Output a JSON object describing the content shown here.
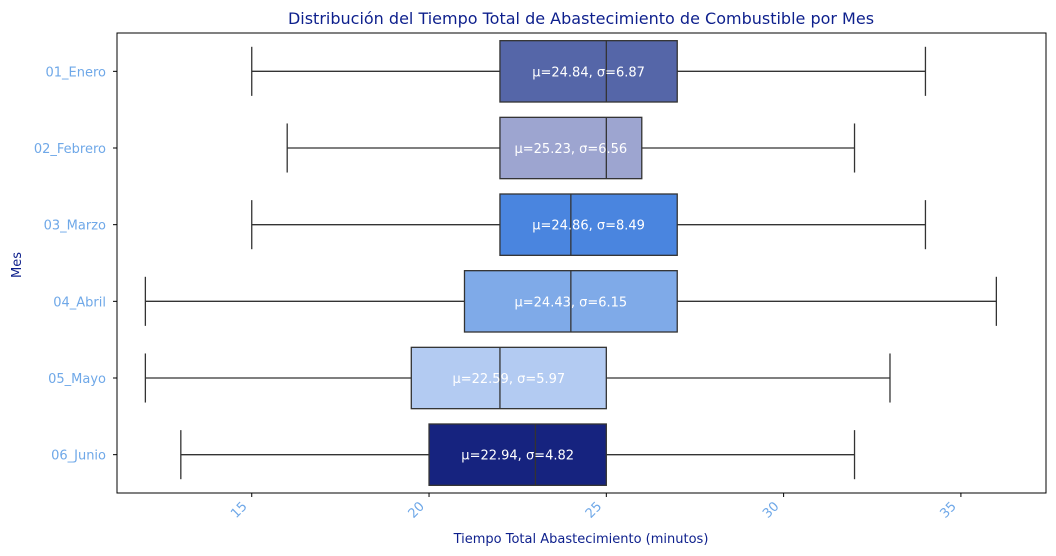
{
  "chart_data": {
    "type": "box",
    "orientation": "horizontal",
    "title": "Distribución del Tiempo Total de Abastecimiento de Combustible por Mes",
    "xlabel": "Tiempo Total Abastecimiento (minutos)",
    "ylabel": "Mes",
    "xlim": [
      11.2,
      37.4
    ],
    "xticks": [
      15,
      20,
      25,
      30,
      35
    ],
    "grid": false,
    "categories": [
      "01_Enero",
      "02_Febrero",
      "03_Marzo",
      "04_Abril",
      "05_Mayo",
      "06_Junio"
    ],
    "boxes": [
      {
        "category": "01_Enero",
        "whisker_low": 15,
        "q1": 22,
        "median": 25,
        "q3": 27,
        "whisker_high": 34,
        "label": "μ=24.84, σ=6.87",
        "color": "#5566a8"
      },
      {
        "category": "02_Febrero",
        "whisker_low": 16,
        "q1": 22,
        "median": 25,
        "q3": 26,
        "whisker_high": 32,
        "label": "μ=25.23, σ=6.56",
        "color": "#9da5d0"
      },
      {
        "category": "03_Marzo",
        "whisker_low": 15,
        "q1": 22,
        "median": 24,
        "q3": 27,
        "whisker_high": 34,
        "label": "μ=24.86, σ=8.49",
        "color": "#4a85df"
      },
      {
        "category": "04_Abril",
        "whisker_low": 12,
        "q1": 21,
        "median": 24,
        "q3": 27,
        "whisker_high": 36,
        "label": "μ=24.43, σ=6.15",
        "color": "#7faae8"
      },
      {
        "category": "05_Mayo",
        "whisker_low": 12,
        "q1": 19.5,
        "median": 22,
        "q3": 25,
        "whisker_high": 33,
        "label": "μ=22.59, σ=5.97",
        "color": "#b3cbf2"
      },
      {
        "category": "06_Junio",
        "whisker_low": 13,
        "q1": 20,
        "median": 23,
        "q3": 25,
        "whisker_high": 32,
        "label": "μ=22.94, σ=4.82",
        "color": "#16237f"
      }
    ]
  }
}
